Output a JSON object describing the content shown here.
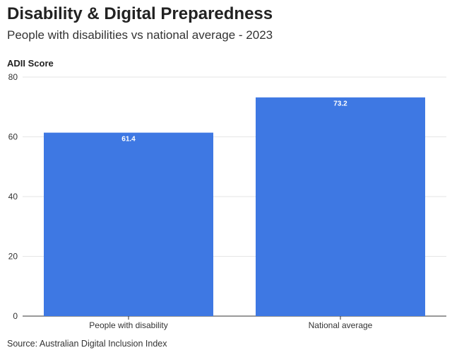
{
  "title": "Disability & Digital Preparedness",
  "subtitle": "People with disabilities vs national average - 2023",
  "source": "Source: Australian Digital Inclusion Index",
  "colors": {
    "bar": "#3e78e3",
    "grid": "#e6e6e6",
    "axis": "#333333"
  },
  "chart_data": {
    "type": "bar",
    "title": "Disability & Digital Preparedness",
    "subtitle": "People with disabilities vs national average - 2023",
    "xlabel": "",
    "ylabel": "ADII Score",
    "categories": [
      "People with disability",
      "National average"
    ],
    "values": [
      61.4,
      73.2
    ],
    "data_labels": [
      "61.4",
      "73.2"
    ],
    "ylim": [
      0,
      80
    ],
    "yticks": [
      0,
      20,
      40,
      60,
      80
    ],
    "grid": true,
    "legend": "none"
  }
}
